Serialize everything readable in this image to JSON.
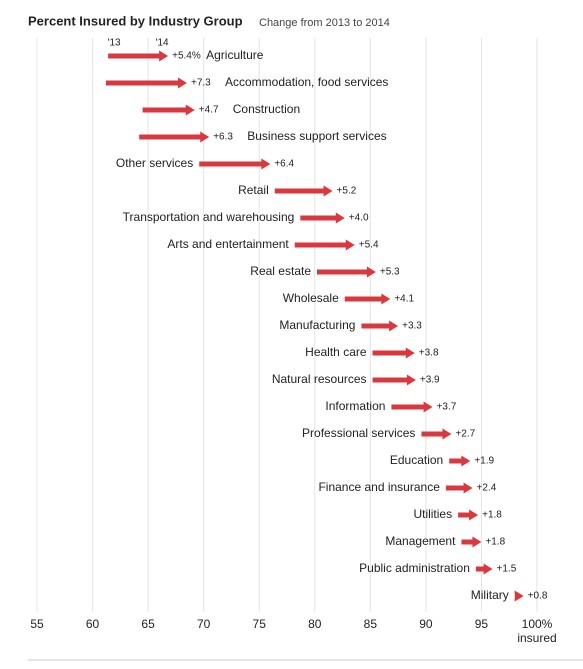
{
  "chart_data": {
    "type": "arrow",
    "title": "Percent Insured by Industry Group",
    "subtitle": "Change from 2013 to 2014",
    "categories": [
      "Agriculture",
      "Accommodation, food services",
      "Construction",
      "Business support services",
      "Other services",
      "Retail",
      "Transportation and warehousing",
      "Arts and entertainment",
      "Real estate",
      "Wholesale",
      "Manufacturing",
      "Health care",
      "Natural resources",
      "Information",
      "Professional services",
      "Education",
      "Finance and insurance",
      "Utilities",
      "Management",
      "Public administration",
      "Military"
    ],
    "start": {
      "name": "'13",
      "values": [
        61.4,
        61.2,
        64.5,
        64.2,
        69.6,
        76.4,
        78.7,
        78.2,
        80.2,
        82.7,
        84.2,
        85.2,
        85.2,
        86.9,
        89.6,
        92.1,
        91.8,
        92.9,
        93.2,
        94.5,
        98.0
      ]
    },
    "end_name": "'14",
    "change": {
      "values": [
        5.4,
        7.3,
        4.7,
        6.3,
        6.4,
        5.2,
        4.0,
        5.4,
        5.3,
        4.1,
        3.3,
        3.8,
        3.9,
        3.7,
        2.7,
        1.9,
        2.4,
        1.8,
        1.8,
        1.5,
        0.8
      ],
      "value_labels": [
        "+5.4%",
        "+7.3",
        "+4.7",
        "+6.3",
        "+6.4",
        "+5.2",
        "+4.0",
        "+5.4",
        "+5.3",
        "+4.1",
        "+3.3",
        "+3.8",
        "+3.9",
        "+3.7",
        "+2.7",
        "+1.9",
        "+2.4",
        "+1.8",
        "+1.8",
        "+1.5",
        "+0.8"
      ]
    },
    "color": "#d9393e",
    "xlim": [
      55,
      100
    ],
    "xticks": [
      55,
      60,
      65,
      70,
      75,
      80,
      85,
      90,
      95,
      {
        "value": 100,
        "label": "100%"
      }
    ],
    "xlabel": "insured",
    "grid": true
  }
}
